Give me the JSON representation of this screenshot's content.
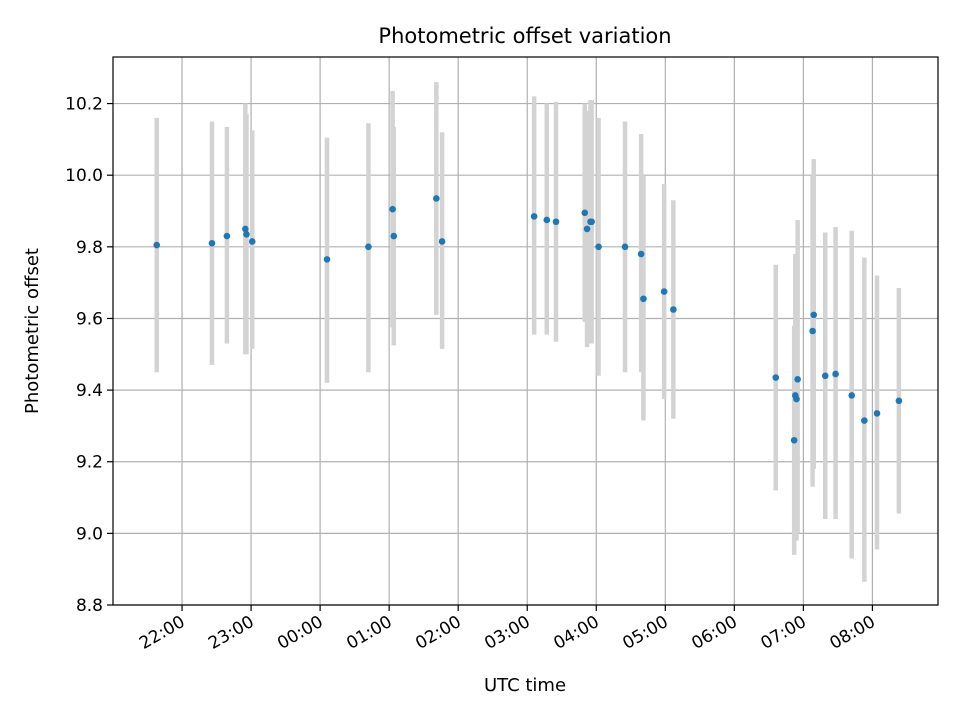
{
  "chart_data": {
    "type": "scatter",
    "title": "Photometric offset variation",
    "xlabel": "UTC time",
    "ylabel": "Photometric offset",
    "x_is_time": true,
    "x_domain": [
      "21:00",
      "08:57"
    ],
    "xlim_hours": [
      21.0,
      32.95
    ],
    "ylim": [
      8.8,
      10.33
    ],
    "grid": true,
    "x_ticks": [
      {
        "hour": 22,
        "label": "22:00"
      },
      {
        "hour": 23,
        "label": "23:00"
      },
      {
        "hour": 24,
        "label": "00:00"
      },
      {
        "hour": 25,
        "label": "01:00"
      },
      {
        "hour": 26,
        "label": "02:00"
      },
      {
        "hour": 27,
        "label": "03:00"
      },
      {
        "hour": 28,
        "label": "04:00"
      },
      {
        "hour": 29,
        "label": "05:00"
      },
      {
        "hour": 30,
        "label": "06:00"
      },
      {
        "hour": 31,
        "label": "07:00"
      },
      {
        "hour": 32,
        "label": "08:00"
      }
    ],
    "y_ticks": [
      {
        "value": 8.8,
        "label": "8.8"
      },
      {
        "value": 9.0,
        "label": "9.0"
      },
      {
        "value": 9.2,
        "label": "9.2"
      },
      {
        "value": 9.4,
        "label": "9.4"
      },
      {
        "value": 9.6,
        "label": "9.6"
      },
      {
        "value": 9.8,
        "label": "9.8"
      },
      {
        "value": 10.0,
        "label": "10.0"
      },
      {
        "value": 10.2,
        "label": "10.2"
      }
    ],
    "point_color": "#1f77b4",
    "errorbar_color": "#d3d3d3",
    "grid_color": "#b0b0b0",
    "points": [
      {
        "time": "21:38",
        "y": 9.805,
        "ylow": 9.45,
        "yhigh": 10.16
      },
      {
        "time": "22:26",
        "y": 9.81,
        "ylow": 9.47,
        "yhigh": 10.15
      },
      {
        "time": "22:39",
        "y": 9.83,
        "ylow": 9.53,
        "yhigh": 10.135
      },
      {
        "time": "22:55",
        "y": 9.85,
        "ylow": 9.5,
        "yhigh": 10.2
      },
      {
        "time": "22:56",
        "y": 9.835,
        "ylow": 9.5,
        "yhigh": 10.17
      },
      {
        "time": "23:01",
        "y": 9.815,
        "ylow": 9.515,
        "yhigh": 10.125
      },
      {
        "time": "00:06",
        "y": 9.765,
        "ylow": 9.42,
        "yhigh": 10.105
      },
      {
        "time": "00:42",
        "y": 9.8,
        "ylow": 9.45,
        "yhigh": 10.145
      },
      {
        "time": "01:03",
        "y": 9.905,
        "ylow": 9.575,
        "yhigh": 10.235
      },
      {
        "time": "01:04",
        "y": 9.83,
        "ylow": 9.525,
        "yhigh": 10.135
      },
      {
        "time": "01:41",
        "y": 9.935,
        "ylow": 9.61,
        "yhigh": 10.26
      },
      {
        "time": "01:46",
        "y": 9.815,
        "ylow": 9.515,
        "yhigh": 10.12
      },
      {
        "time": "03:06",
        "y": 9.885,
        "ylow": 9.555,
        "yhigh": 10.22
      },
      {
        "time": "03:17",
        "y": 9.875,
        "ylow": 9.555,
        "yhigh": 10.2
      },
      {
        "time": "03:25",
        "y": 9.87,
        "ylow": 9.535,
        "yhigh": 10.205
      },
      {
        "time": "03:50",
        "y": 9.895,
        "ylow": 9.59,
        "yhigh": 10.2
      },
      {
        "time": "03:52",
        "y": 9.85,
        "ylow": 9.52,
        "yhigh": 10.18
      },
      {
        "time": "03:55",
        "y": 9.87,
        "ylow": 9.53,
        "yhigh": 10.21
      },
      {
        "time": "03:56",
        "y": 9.87,
        "ylow": 9.53,
        "yhigh": 10.21
      },
      {
        "time": "04:02",
        "y": 9.8,
        "ylow": 9.44,
        "yhigh": 10.16
      },
      {
        "time": "04:25",
        "y": 9.8,
        "ylow": 9.45,
        "yhigh": 10.15
      },
      {
        "time": "04:39",
        "y": 9.78,
        "ylow": 9.45,
        "yhigh": 10.115
      },
      {
        "time": "04:41",
        "y": 9.655,
        "ylow": 9.315,
        "yhigh": 10.0
      },
      {
        "time": "04:59",
        "y": 9.675,
        "ylow": 9.375,
        "yhigh": 9.975
      },
      {
        "time": "05:07",
        "y": 9.625,
        "ylow": 9.32,
        "yhigh": 9.93
      },
      {
        "time": "06:36",
        "y": 9.435,
        "ylow": 9.12,
        "yhigh": 9.75
      },
      {
        "time": "06:52",
        "y": 9.26,
        "ylow": 8.94,
        "yhigh": 9.58
      },
      {
        "time": "06:53",
        "y": 9.385,
        "ylow": 8.99,
        "yhigh": 9.78
      },
      {
        "time": "06:54",
        "y": 9.375,
        "ylow": 8.98,
        "yhigh": 9.77
      },
      {
        "time": "06:55",
        "y": 9.43,
        "ylow": 9.0,
        "yhigh": 9.875
      },
      {
        "time": "07:08",
        "y": 9.565,
        "ylow": 9.13,
        "yhigh": 10.0
      },
      {
        "time": "07:09",
        "y": 9.61,
        "ylow": 9.18,
        "yhigh": 10.045
      },
      {
        "time": "07:19",
        "y": 9.44,
        "ylow": 9.04,
        "yhigh": 9.84
      },
      {
        "time": "07:28",
        "y": 9.445,
        "ylow": 9.04,
        "yhigh": 9.855
      },
      {
        "time": "07:42",
        "y": 9.385,
        "ylow": 8.93,
        "yhigh": 9.845
      },
      {
        "time": "07:53",
        "y": 9.315,
        "ylow": 8.865,
        "yhigh": 9.77
      },
      {
        "time": "08:04",
        "y": 9.335,
        "ylow": 8.955,
        "yhigh": 9.72
      },
      {
        "time": "08:23",
        "y": 9.37,
        "ylow": 9.055,
        "yhigh": 9.685
      }
    ]
  }
}
